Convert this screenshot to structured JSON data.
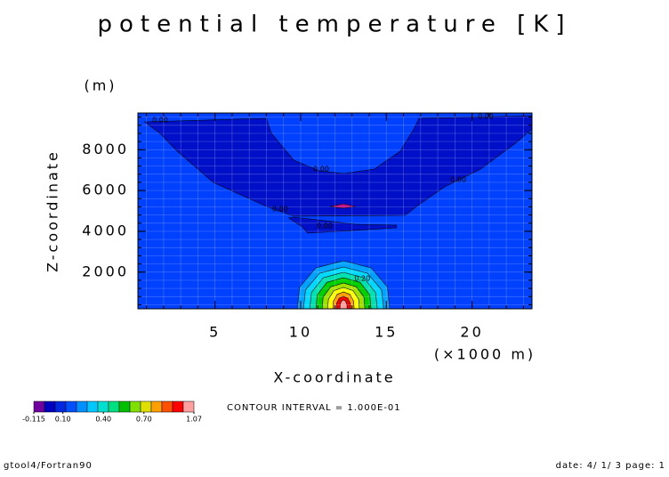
{
  "chart_data": {
    "type": "contour",
    "title": "potential temperature [K]",
    "x_label": "X-coordinate",
    "x_unit": "(×1000 m)",
    "y_label": "Z-coordinate",
    "y_unit": "(m)",
    "note": "CONTOUR INTERVAL = 1.000E-01",
    "footer_left": "gtool4/Fortran90",
    "footer_right": "date: 4/ 1/ 3 page: 1",
    "xlim": [
      0.5,
      23.5
    ],
    "ylim": [
      200,
      9800
    ],
    "xticks": [
      5,
      10,
      15,
      20
    ],
    "yticks": [
      2000,
      4000,
      6000,
      8000
    ],
    "xminor_step": 1,
    "yminor_step": 400,
    "grid": true,
    "background_color": "#0040ff",
    "regions": [
      {
        "color": "#0010c8",
        "x": [
          0.9,
          8.0,
          8.3,
          9.6,
          11.1,
          12.5,
          14.3,
          15.8,
          16.6,
          16.9,
          23.5,
          23.5,
          22.6,
          20.5,
          18.4,
          16.9,
          16.1,
          9.6,
          8.0,
          4.9,
          2.8,
          1.8
        ],
        "z": [
          9364,
          9539,
          8797,
          7488,
          6964,
          6833,
          7051,
          7924,
          9015,
          9539,
          9670,
          9015,
          8361,
          7051,
          6179,
          5306,
          4782,
          4739,
          5219,
          6397,
          7924,
          8797
        ]
      },
      {
        "color": "#0010c8",
        "x": [
          9.3,
          10.1,
          10.4,
          12.2,
          15.6,
          15.6,
          13.2,
          9.6
        ],
        "z": [
          4651,
          4215,
          3909,
          3997,
          4171,
          4302,
          4346,
          4695
        ]
      },
      {
        "color": "#c0108c",
        "x": [
          11.7,
          12.5,
          13.2,
          12.5
        ],
        "z": [
          5219,
          5350,
          5219,
          5132
        ]
      },
      {
        "color": "#00a0ff",
        "x": [
          9.8,
          9.94,
          10.88,
          12.5,
          14.12,
          15.07,
          15.2
        ],
        "z": [
          200,
          1260,
          2203,
          2556,
          2203,
          1260,
          200
        ]
      },
      {
        "color": "#00d8ff",
        "x": [
          10.16,
          10.28,
          11.1,
          12.5,
          13.9,
          14.72,
          14.84
        ],
        "z": [
          200,
          1123,
          1943,
          2251,
          1943,
          1123,
          200
        ]
      },
      {
        "color": "#00e0b0",
        "x": [
          10.53,
          10.63,
          11.32,
          12.5,
          13.68,
          14.37,
          14.47
        ],
        "z": [
          200,
          1005,
          1721,
          1989,
          1721,
          1005,
          200
        ]
      },
      {
        "color": "#00d000",
        "x": [
          10.89,
          10.97,
          11.53,
          12.5,
          13.47,
          14.03,
          14.11
        ],
        "z": [
          200,
          887,
          1498,
          1727,
          1498,
          887,
          200
        ]
      },
      {
        "color": "#a0e000",
        "x": [
          11.25,
          11.31,
          11.75,
          12.5,
          13.25,
          13.69,
          13.75
        ],
        "z": [
          200,
          770,
          1276,
          1466,
          1276,
          770,
          200
        ]
      },
      {
        "color": "#ffff00",
        "x": [
          11.57,
          11.62,
          11.94,
          12.5,
          13.06,
          13.38,
          13.43
        ],
        "z": [
          200,
          671,
          1090,
          1247,
          1090,
          671,
          200
        ]
      },
      {
        "color": "#ffa000",
        "x": [
          11.88,
          11.91,
          12.13,
          12.5,
          12.87,
          13.09,
          13.12
        ],
        "z": [
          200,
          573,
          905,
          1029,
          905,
          573,
          200
        ]
      },
      {
        "color": "#ff0000",
        "x": [
          12.08,
          12.1,
          12.25,
          12.5,
          12.75,
          12.9,
          12.92
        ],
        "z": [
          200,
          475,
          719,
          811,
          719,
          475,
          200
        ]
      },
      {
        "color": "#ffa0a0",
        "x": [
          12.29,
          12.3,
          12.37,
          12.5,
          12.63,
          12.7,
          12.71
        ],
        "z": [
          200,
          396,
          571,
          636,
          571,
          396,
          200
        ]
      }
    ],
    "contour_labels": [
      {
        "text": "0.00",
        "x": 1.8,
        "z": 9451
      },
      {
        "text": "0.00",
        "x": 20.8,
        "z": 9626
      },
      {
        "text": "0.00",
        "x": 11.2,
        "z": 7051
      },
      {
        "text": "0.00",
        "x": 19.2,
        "z": 6528
      },
      {
        "text": "0.00",
        "x": 8.8,
        "z": 5088
      },
      {
        "text": "0.00",
        "x": 11.4,
        "z": 4259
      },
      {
        "text": "0.20",
        "x": 13.6,
        "z": 1684
      }
    ],
    "colorbar": {
      "colors": [
        "#7000a0",
        "#0000c0",
        "#0028e0",
        "#0050ff",
        "#0090ff",
        "#00c8ff",
        "#00e0d0",
        "#00e080",
        "#00c000",
        "#80e000",
        "#e0e000",
        "#ffa000",
        "#ff5000",
        "#ff0000"
      ],
      "extra_color": "#ffa0a0",
      "lim": [
        -0.115,
        1.07
      ],
      "ticks": [
        -0.115,
        {
          "value": 0.1,
          "label": "0.10"
        },
        {
          "value": 0.4,
          "label": "0.40"
        },
        {
          "value": 0.7,
          "label": "0.70"
        },
        1.07
      ]
    }
  }
}
